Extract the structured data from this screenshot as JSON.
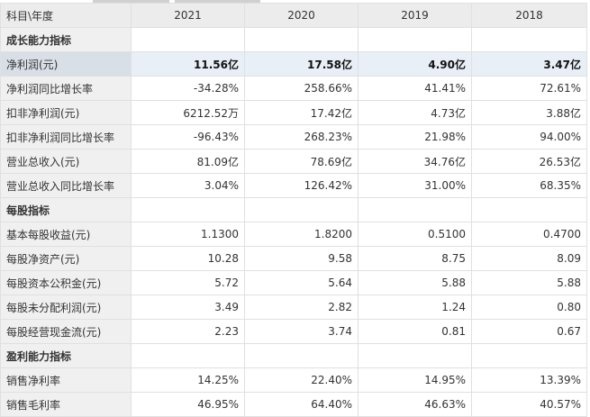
{
  "header": {
    "label": "科目\\年度",
    "years": [
      "2021",
      "2020",
      "2019",
      "2018"
    ]
  },
  "rows": [
    {
      "type": "section",
      "label": "成长能力指标"
    },
    {
      "type": "highlight",
      "label": "净利润(元)",
      "values": [
        "11.56亿",
        "17.58亿",
        "4.90亿",
        "3.47亿"
      ]
    },
    {
      "type": "row",
      "label": "净利润同比增长率",
      "values": [
        "-34.28%",
        "258.66%",
        "41.41%",
        "72.61%"
      ]
    },
    {
      "type": "row",
      "label": "扣非净利润(元)",
      "values": [
        "6212.52万",
        "17.42亿",
        "4.73亿",
        "3.88亿"
      ]
    },
    {
      "type": "row",
      "label": "扣非净利润同比增长率",
      "values": [
        "-96.43%",
        "268.23%",
        "21.98%",
        "94.00%"
      ]
    },
    {
      "type": "row",
      "label": "营业总收入(元)",
      "values": [
        "81.09亿",
        "78.69亿",
        "34.76亿",
        "26.53亿"
      ]
    },
    {
      "type": "row",
      "label": "营业总收入同比增长率",
      "values": [
        "3.04%",
        "126.42%",
        "31.00%",
        "68.35%"
      ]
    },
    {
      "type": "section",
      "label": "每股指标"
    },
    {
      "type": "row",
      "label": "基本每股收益(元)",
      "values": [
        "1.1300",
        "1.8200",
        "0.5100",
        "0.4700"
      ]
    },
    {
      "type": "row",
      "label": "每股净资产(元)",
      "values": [
        "10.28",
        "9.58",
        "8.75",
        "8.09"
      ]
    },
    {
      "type": "row",
      "label": "每股资本公积金(元)",
      "values": [
        "5.72",
        "5.64",
        "5.88",
        "5.88"
      ]
    },
    {
      "type": "row",
      "label": "每股未分配利润(元)",
      "values": [
        "3.49",
        "2.82",
        "1.24",
        "0.80"
      ]
    },
    {
      "type": "row",
      "label": "每股经营现金流(元)",
      "values": [
        "2.23",
        "3.74",
        "0.81",
        "0.67"
      ]
    },
    {
      "type": "section",
      "label": "盈利能力指标"
    },
    {
      "type": "row",
      "label": "销售净利率",
      "values": [
        "14.25%",
        "22.40%",
        "14.95%",
        "13.39%"
      ]
    },
    {
      "type": "row",
      "label": "销售毛利率",
      "values": [
        "46.95%",
        "64.40%",
        "46.63%",
        "40.57%"
      ]
    }
  ]
}
